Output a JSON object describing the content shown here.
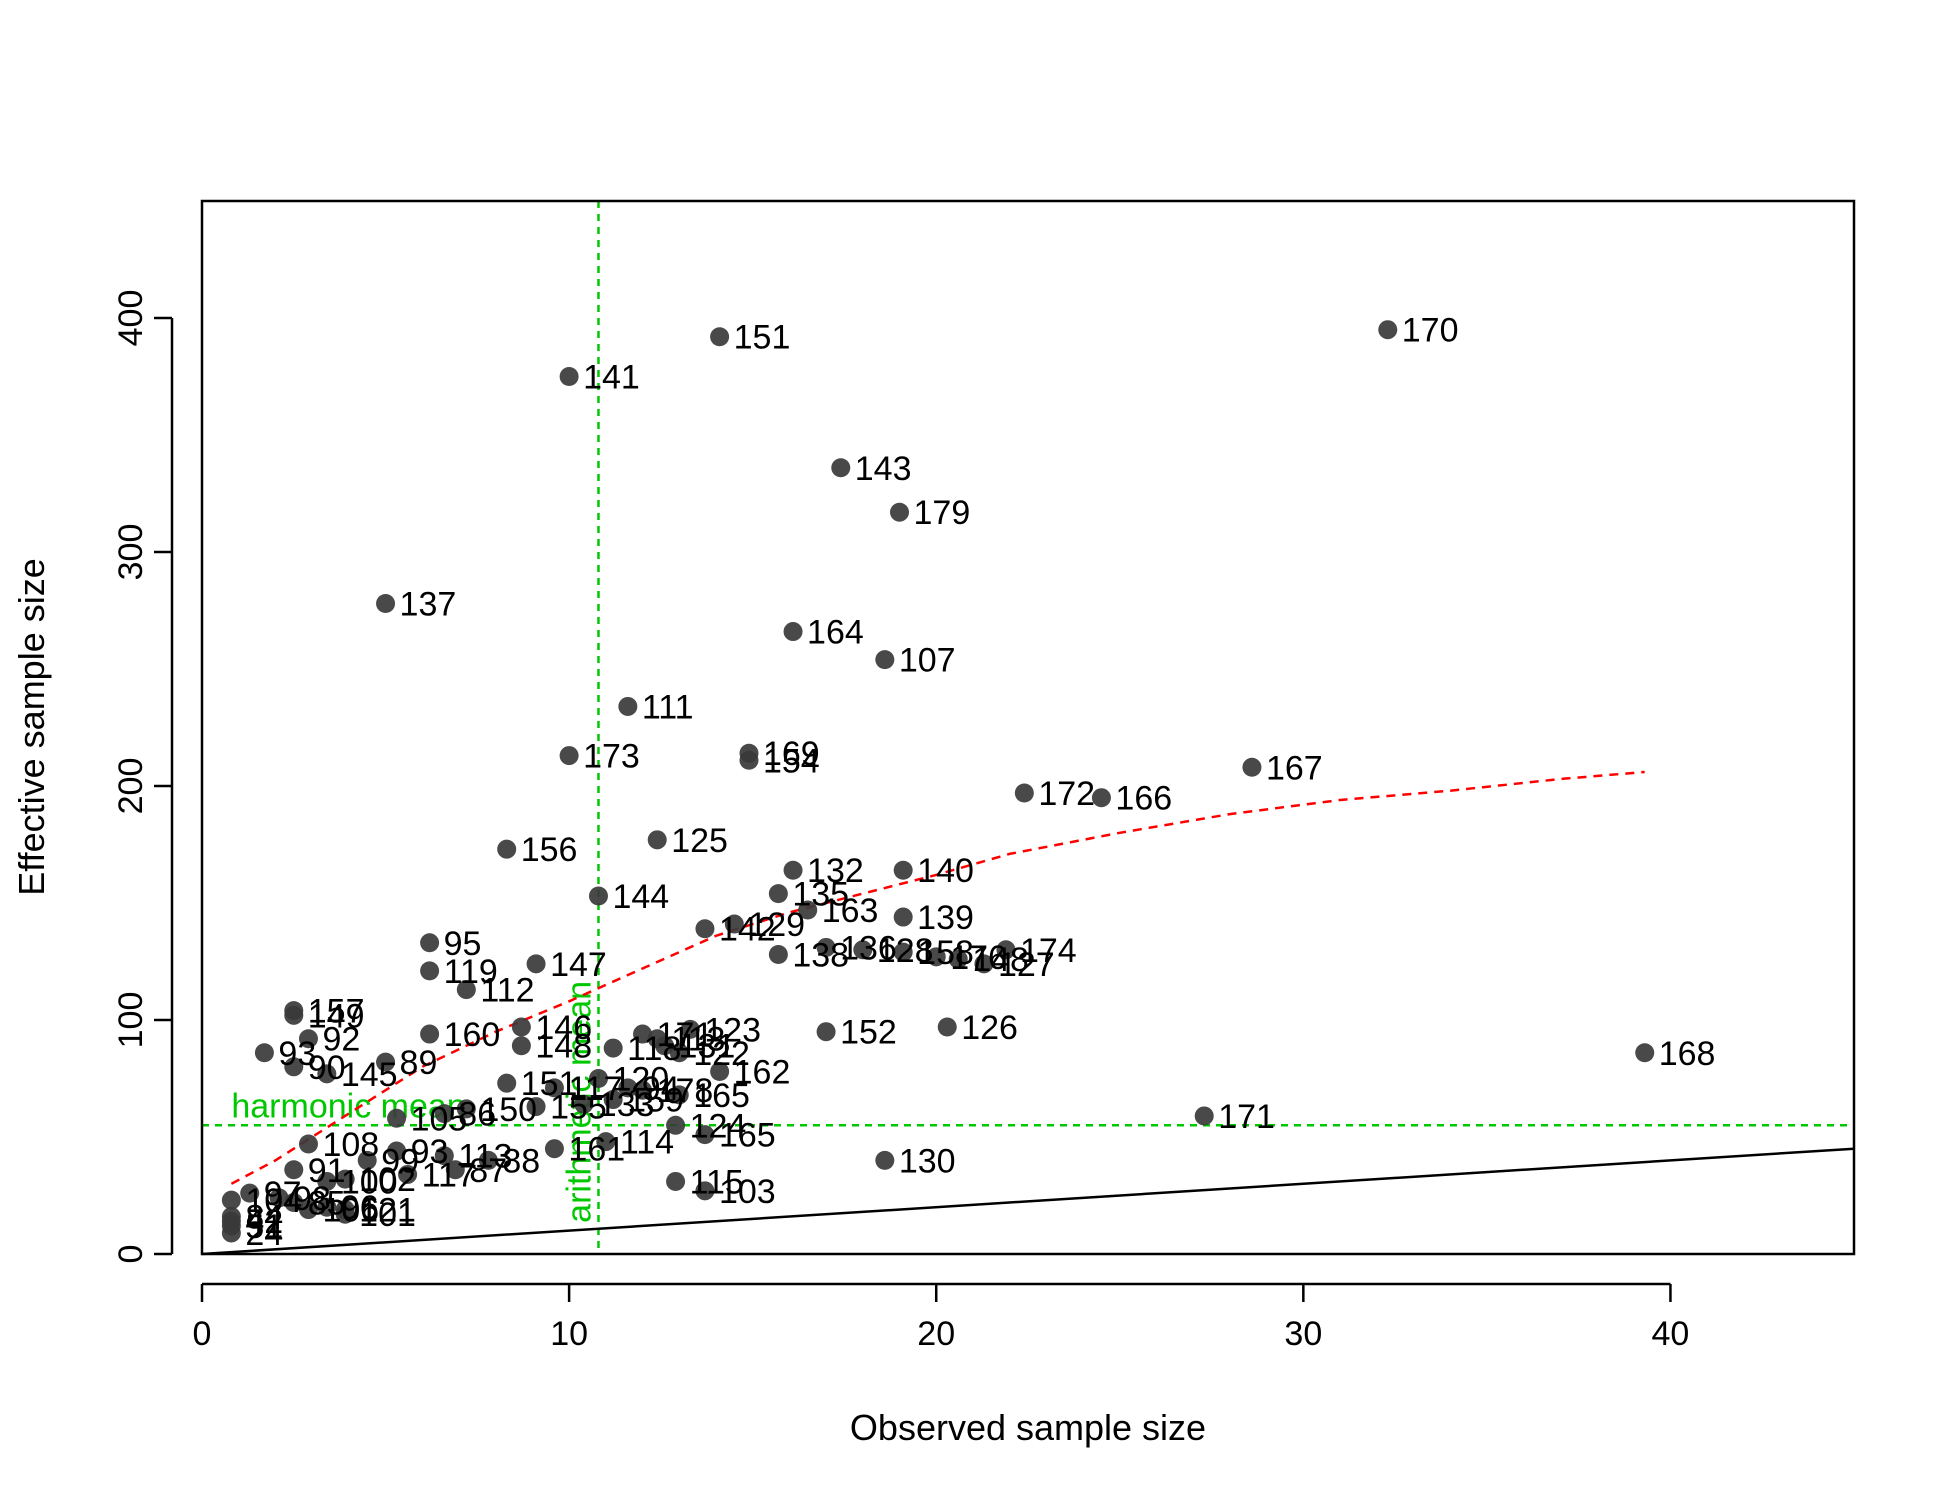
{
  "chart_data": {
    "type": "scatter",
    "xlabel": "Observed sample size",
    "ylabel": "Effective sample size",
    "xlim": [
      0,
      45
    ],
    "ylim": [
      0,
      450
    ],
    "x_ticks": [
      0,
      10,
      20,
      30,
      40
    ],
    "y_ticks": [
      0,
      100,
      200,
      300,
      400
    ],
    "colors": {
      "points": "#3a3a3a",
      "fit": "#ff0000",
      "ref": "#00c800",
      "identity": "#000000"
    },
    "reference_lines": {
      "harmonic_mean": {
        "label": "harmonic mean",
        "y": 55
      },
      "arithmetic_mean": {
        "label": "arithmetic mean",
        "x": 10.8
      }
    },
    "identity_line": {
      "from": [
        0,
        0
      ],
      "to": [
        45,
        45
      ]
    },
    "fit_curve": [
      [
        0.8,
        30
      ],
      [
        2,
        40
      ],
      [
        4,
        60
      ],
      [
        6,
        80
      ],
      [
        8,
        95
      ],
      [
        10,
        108
      ],
      [
        12,
        122
      ],
      [
        14,
        136
      ],
      [
        16,
        146
      ],
      [
        18,
        154
      ],
      [
        20,
        162
      ],
      [
        22,
        171
      ],
      [
        25,
        180
      ],
      [
        28,
        188
      ],
      [
        31,
        194
      ],
      [
        34,
        198
      ],
      [
        37,
        203
      ],
      [
        39.3,
        206
      ]
    ],
    "points": [
      {
        "label": "170",
        "x": 32.3,
        "y": 395
      },
      {
        "label": "151",
        "x": 14.1,
        "y": 392
      },
      {
        "label": "141",
        "x": 10.0,
        "y": 375
      },
      {
        "label": "143",
        "x": 17.4,
        "y": 336
      },
      {
        "label": "179",
        "x": 19.0,
        "y": 317
      },
      {
        "label": "137",
        "x": 5.0,
        "y": 278
      },
      {
        "label": "164",
        "x": 16.1,
        "y": 266
      },
      {
        "label": "107",
        "x": 18.6,
        "y": 254
      },
      {
        "label": "111",
        "x": 11.6,
        "y": 234
      },
      {
        "label": "169",
        "x": 14.9,
        "y": 214
      },
      {
        "label": "173",
        "x": 10.0,
        "y": 213
      },
      {
        "label": "154",
        "x": 14.9,
        "y": 211
      },
      {
        "label": "167",
        "x": 28.6,
        "y": 208
      },
      {
        "label": "172",
        "x": 22.4,
        "y": 197
      },
      {
        "label": "166",
        "x": 24.5,
        "y": 195
      },
      {
        "label": "125",
        "x": 12.4,
        "y": 177
      },
      {
        "label": "156",
        "x": 8.3,
        "y": 173
      },
      {
        "label": "132",
        "x": 16.1,
        "y": 164
      },
      {
        "label": "140",
        "x": 19.1,
        "y": 164
      },
      {
        "label": "135",
        "x": 15.7,
        "y": 154
      },
      {
        "label": "144",
        "x": 10.8,
        "y": 153
      },
      {
        "label": "163",
        "x": 16.5,
        "y": 147
      },
      {
        "label": "139",
        "x": 19.1,
        "y": 144
      },
      {
        "label": "142",
        "x": 13.7,
        "y": 139
      },
      {
        "label": "129",
        "x": 14.5,
        "y": 141
      },
      {
        "label": "95",
        "x": 6.2,
        "y": 133
      },
      {
        "label": "136",
        "x": 17.0,
        "y": 131
      },
      {
        "label": "128",
        "x": 18.0,
        "y": 130
      },
      {
        "label": "138",
        "x": 15.7,
        "y": 128
      },
      {
        "label": "158",
        "x": 19.1,
        "y": 129
      },
      {
        "label": "176",
        "x": 20.0,
        "y": 127
      },
      {
        "label": "174",
        "x": 21.9,
        "y": 130
      },
      {
        "label": "148",
        "x": 20.6,
        "y": 126
      },
      {
        "label": "127",
        "x": 21.3,
        "y": 124
      },
      {
        "label": "147",
        "x": 9.1,
        "y": 124
      },
      {
        "label": "119",
        "x": 6.2,
        "y": 121
      },
      {
        "label": "112",
        "x": 7.2,
        "y": 113
      },
      {
        "label": "157",
        "x": 2.5,
        "y": 104
      },
      {
        "label": "149",
        "x": 2.5,
        "y": 102
      },
      {
        "label": "126",
        "x": 20.3,
        "y": 97
      },
      {
        "label": "123",
        "x": 13.3,
        "y": 96
      },
      {
        "label": "160",
        "x": 6.2,
        "y": 94
      },
      {
        "label": "146",
        "x": 8.7,
        "y": 97
      },
      {
        "label": "152",
        "x": 17.0,
        "y": 95
      },
      {
        "label": "171",
        "x": 12.0,
        "y": 94
      },
      {
        "label": "113",
        "x": 12.4,
        "y": 92
      },
      {
        "label": "92",
        "x": 2.9,
        "y": 92
      },
      {
        "label": "118",
        "x": 11.2,
        "y": 88
      },
      {
        "label": "131",
        "x": 12.6,
        "y": 89
      },
      {
        "label": "148",
        "x": 8.7,
        "y": 89
      },
      {
        "label": "122",
        "x": 13.0,
        "y": 86
      },
      {
        "label": "93",
        "x": 1.7,
        "y": 86
      },
      {
        "label": "168",
        "x": 39.3,
        "y": 86
      },
      {
        "label": "89",
        "x": 5.0,
        "y": 82
      },
      {
        "label": "90",
        "x": 2.5,
        "y": 80
      },
      {
        "label": "145",
        "x": 3.4,
        "y": 77
      },
      {
        "label": "162",
        "x": 14.1,
        "y": 78
      },
      {
        "label": "120",
        "x": 10.8,
        "y": 75
      },
      {
        "label": "151",
        "x": 8.3,
        "y": 73
      },
      {
        "label": "117",
        "x": 9.6,
        "y": 71
      },
      {
        "label": "94",
        "x": 11.6,
        "y": 71
      },
      {
        "label": "178",
        "x": 12.0,
        "y": 70
      },
      {
        "label": "165",
        "x": 13.0,
        "y": 68
      },
      {
        "label": "159",
        "x": 11.2,
        "y": 66
      },
      {
        "label": "133",
        "x": 10.4,
        "y": 64
      },
      {
        "label": "155",
        "x": 9.1,
        "y": 63
      },
      {
        "label": "150",
        "x": 7.2,
        "y": 62
      },
      {
        "label": "86",
        "x": 6.6,
        "y": 60
      },
      {
        "label": "105",
        "x": 5.3,
        "y": 58
      },
      {
        "label": "171",
        "x": 27.3,
        "y": 59
      },
      {
        "label": "124",
        "x": 12.9,
        "y": 55
      },
      {
        "label": "108",
        "x": 2.9,
        "y": 47
      },
      {
        "label": "165",
        "x": 13.7,
        "y": 51
      },
      {
        "label": "114",
        "x": 11.0,
        "y": 48
      },
      {
        "label": "161",
        "x": 9.6,
        "y": 45
      },
      {
        "label": "93",
        "x": 5.3,
        "y": 44
      },
      {
        "label": "113",
        "x": 6.6,
        "y": 42
      },
      {
        "label": "99",
        "x": 4.5,
        "y": 40
      },
      {
        "label": "88",
        "x": 7.8,
        "y": 40
      },
      {
        "label": "130",
        "x": 18.6,
        "y": 40
      },
      {
        "label": "87",
        "x": 6.9,
        "y": 36
      },
      {
        "label": "91",
        "x": 2.5,
        "y": 36
      },
      {
        "label": "117",
        "x": 5.6,
        "y": 34
      },
      {
        "label": "102",
        "x": 3.9,
        "y": 32
      },
      {
        "label": "100",
        "x": 3.4,
        "y": 31
      },
      {
        "label": "115",
        "x": 12.9,
        "y": 31
      },
      {
        "label": "103",
        "x": 13.7,
        "y": 27
      },
      {
        "label": "97",
        "x": 1.3,
        "y": 26
      },
      {
        "label": "98",
        "x": 2.1,
        "y": 24
      },
      {
        "label": "85",
        "x": 2.5,
        "y": 22
      },
      {
        "label": "96",
        "x": 3.4,
        "y": 20
      },
      {
        "label": "121",
        "x": 3.9,
        "y": 19
      },
      {
        "label": "106",
        "x": 2.9,
        "y": 19
      },
      {
        "label": "101",
        "x": 3.9,
        "y": 17
      },
      {
        "label": "104",
        "x": 0.8,
        "y": 23
      },
      {
        "label": "84",
        "x": 0.8,
        "y": 16
      },
      {
        "label": "42",
        "x": 0.8,
        "y": 14
      },
      {
        "label": "51",
        "x": 0.8,
        "y": 12
      },
      {
        "label": "24",
        "x": 0.8,
        "y": 9
      }
    ]
  }
}
